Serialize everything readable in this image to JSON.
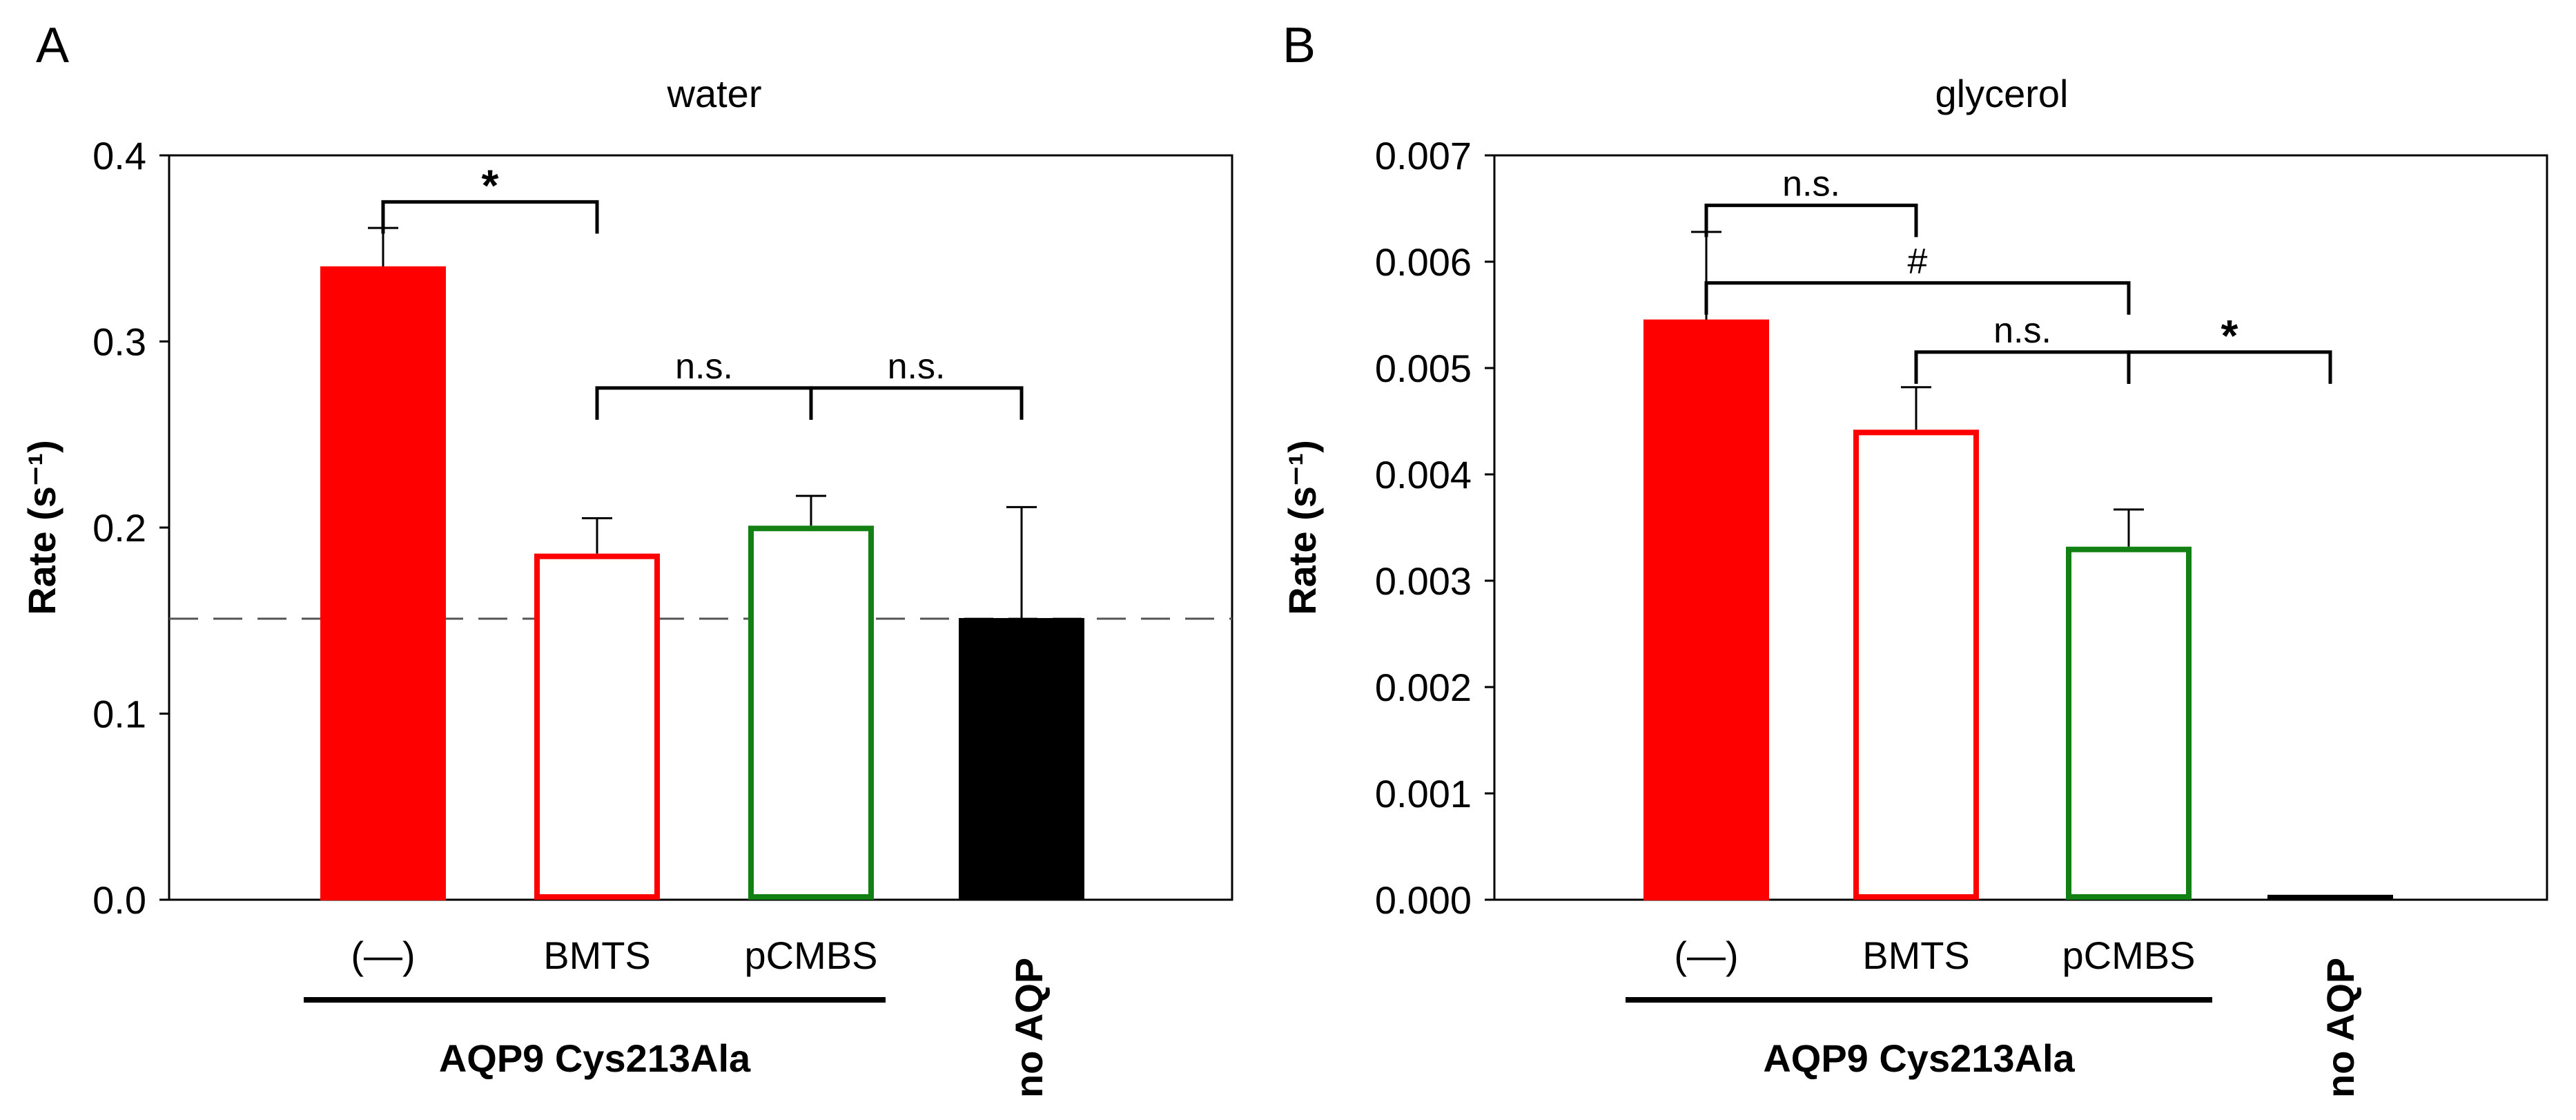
{
  "chart_data": [
    {
      "panel_label": "A",
      "type": "bar",
      "title": "water",
      "ylabel": "Rate (s⁻¹)",
      "ylim": [
        0,
        0.4
      ],
      "yticks": [
        "0.0",
        "0.1",
        "0.2",
        "0.3",
        "0.4"
      ],
      "ytick_values": [
        0,
        0.1,
        0.2,
        0.3,
        0.4
      ],
      "categories": [
        "(—)",
        "BMTS",
        "pCMBS",
        "no AQP"
      ],
      "values": [
        0.34,
        0.186,
        0.201,
        0.151
      ],
      "errors": [
        0.021,
        0.019,
        0.016,
        0.06
      ],
      "bar_styles": [
        {
          "fill": "#ff0000",
          "stroke": "#ff0000"
        },
        {
          "fill": "#ffffff",
          "stroke": "#ff0000"
        },
        {
          "fill": "#ffffff",
          "stroke": "#138013"
        },
        {
          "fill": "#000000",
          "stroke": "#000000"
        }
      ],
      "reference_line": 0.151,
      "group_label": "AQP9 Cys213Ala",
      "group_span": [
        0,
        2
      ],
      "comparisons": [
        {
          "from": 0,
          "to": 1,
          "label": "*",
          "level": 0.375
        },
        {
          "from": 1,
          "to": 2,
          "label": "n.s.",
          "level": 0.275
        },
        {
          "from": 2,
          "to": 3,
          "label": "n.s.",
          "level": 0.275
        }
      ]
    },
    {
      "panel_label": "B",
      "type": "bar",
      "title": "glycerol",
      "ylabel": "Rate (s⁻¹)",
      "ylim": [
        0,
        0.007
      ],
      "yticks": [
        "0.000",
        "0.001",
        "0.002",
        "0.003",
        "0.004",
        "0.005",
        "0.006",
        "0.007"
      ],
      "ytick_values": [
        0,
        0.001,
        0.002,
        0.003,
        0.004,
        0.005,
        0.006,
        0.007
      ],
      "categories": [
        "(—)",
        "BMTS",
        "pCMBS",
        "no AQP"
      ],
      "values": [
        0.00545,
        0.00442,
        0.00332,
        4e-05
      ],
      "errors": [
        0.00083,
        0.0004,
        0.00035,
        0
      ],
      "bar_styles": [
        {
          "fill": "#ff0000",
          "stroke": "#ff0000"
        },
        {
          "fill": "#ffffff",
          "stroke": "#ff0000"
        },
        {
          "fill": "#ffffff",
          "stroke": "#138013"
        },
        {
          "fill": "#000000",
          "stroke": "#000000"
        }
      ],
      "reference_line": null,
      "group_label": "AQP9 Cys213Ala",
      "group_span": [
        0,
        2
      ],
      "comparisons": [
        {
          "from": 0,
          "to": 1,
          "label": "n.s.",
          "level": 0.00653
        },
        {
          "from": 0,
          "to": 2,
          "label": "#",
          "level": 0.0058
        },
        {
          "from": 1,
          "to": 2,
          "label": "n.s.",
          "level": 0.00515
        },
        {
          "from": 2,
          "to": 3,
          "label": "*",
          "level": 0.00515
        }
      ]
    }
  ]
}
